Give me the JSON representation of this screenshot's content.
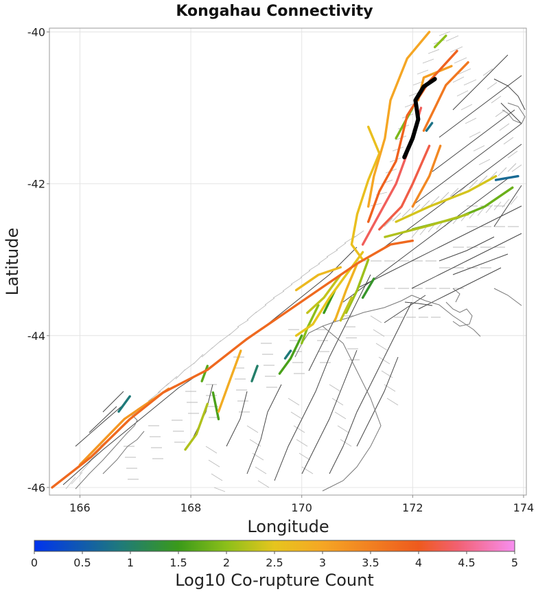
{
  "chart_data": {
    "type": "map",
    "title": "Kongahau Connectivity",
    "xlabel": "Longitude",
    "ylabel": "Latitude",
    "xlim": [
      165.45,
      174.05
    ],
    "ylim": [
      -46.1,
      -39.95
    ],
    "xticks": [
      166,
      168,
      170,
      172,
      174
    ],
    "yticks": [
      -40,
      -42,
      -44,
      -46
    ],
    "xtick_labels": [
      "166",
      "168",
      "170",
      "172",
      "174"
    ],
    "ytick_labels": [
      "-40",
      "-42",
      "-44",
      "-46"
    ],
    "colorbar": {
      "label": "Log10 Co-rupture Count",
      "min": 0,
      "max": 5,
      "ticks": [
        0,
        0.5,
        1,
        1.5,
        2,
        2.5,
        3,
        3.5,
        4,
        4.5,
        5
      ],
      "tick_labels": [
        "0",
        "0.5",
        "1",
        "1.5",
        "2",
        "2.5",
        "3",
        "3.5",
        "4",
        "4.5",
        "5"
      ],
      "stops": [
        {
          "v": 0,
          "color": "#0033ee"
        },
        {
          "v": 0.9,
          "color": "#1f7a7a"
        },
        {
          "v": 1.5,
          "color": "#3a9a1a"
        },
        {
          "v": 2.0,
          "color": "#8cbf1a"
        },
        {
          "v": 2.5,
          "color": "#e6c51e"
        },
        {
          "v": 3.0,
          "color": "#f5a624"
        },
        {
          "v": 4.0,
          "color": "#ee5a1e"
        },
        {
          "v": 4.4,
          "color": "#f26070"
        },
        {
          "v": 5.0,
          "color": "#f78ef0"
        }
      ]
    },
    "target_fault": {
      "name": "Kongahau",
      "color": "#000000",
      "coords": [
        [
          172.4,
          -40.62
        ],
        [
          172.2,
          -40.72
        ],
        [
          172.05,
          -40.9
        ],
        [
          172.1,
          -41.15
        ],
        [
          172.0,
          -41.4
        ],
        [
          171.85,
          -41.65
        ]
      ]
    },
    "faults": [
      {
        "value": 3.8,
        "coords": [
          [
            165.5,
            -46.0
          ],
          [
            166.2,
            -45.6
          ],
          [
            166.9,
            -45.1
          ],
          [
            167.5,
            -44.75
          ],
          [
            168.3,
            -44.45
          ],
          [
            169.0,
            -44.05
          ],
          [
            169.8,
            -43.65
          ],
          [
            170.4,
            -43.35
          ],
          [
            171.0,
            -43.05
          ],
          [
            171.6,
            -42.8
          ],
          [
            172.0,
            -42.75
          ]
        ]
      },
      {
        "value": 3.2,
        "coords": [
          [
            166.0,
            -45.7
          ],
          [
            166.8,
            -45.1
          ],
          [
            167.6,
            -44.7
          ]
        ]
      },
      {
        "value": 2.6,
        "coords": [
          [
            171.2,
            -41.25
          ],
          [
            171.4,
            -41.6
          ],
          [
            171.2,
            -41.95
          ],
          [
            171.0,
            -42.4
          ],
          [
            170.9,
            -42.8
          ],
          [
            171.1,
            -43.0
          ]
        ]
      },
      {
        "value": 3.0,
        "coords": [
          [
            172.3,
            -40.0
          ],
          [
            171.9,
            -40.35
          ],
          [
            171.6,
            -40.9
          ],
          [
            171.5,
            -41.4
          ],
          [
            171.3,
            -41.9
          ],
          [
            171.2,
            -42.3
          ]
        ]
      },
      {
        "value": 3.9,
        "coords": [
          [
            172.8,
            -40.25
          ],
          [
            172.3,
            -40.65
          ],
          [
            171.9,
            -41.1
          ],
          [
            171.7,
            -41.7
          ],
          [
            171.4,
            -42.1
          ],
          [
            171.2,
            -42.5
          ]
        ]
      },
      {
        "value": 4.3,
        "coords": [
          [
            172.15,
            -41.0
          ],
          [
            171.9,
            -41.6
          ],
          [
            171.7,
            -42.0
          ],
          [
            171.4,
            -42.4
          ],
          [
            171.1,
            -42.8
          ]
        ]
      },
      {
        "value": 4.2,
        "coords": [
          [
            172.3,
            -41.5
          ],
          [
            172.0,
            -42.0
          ],
          [
            171.8,
            -42.3
          ],
          [
            171.4,
            -42.6
          ]
        ]
      },
      {
        "value": 3.4,
        "coords": [
          [
            172.5,
            -41.5
          ],
          [
            172.3,
            -41.9
          ],
          [
            172.0,
            -42.3
          ]
        ]
      },
      {
        "value": 3.1,
        "coords": [
          [
            172.7,
            -40.45
          ],
          [
            172.2,
            -40.6
          ],
          [
            172.1,
            -40.9
          ]
        ]
      },
      {
        "value": 3.6,
        "coords": [
          [
            173.0,
            -40.4
          ],
          [
            172.6,
            -40.7
          ],
          [
            172.4,
            -41.0
          ],
          [
            172.2,
            -41.3
          ]
        ]
      },
      {
        "value": 1.9,
        "coords": [
          [
            172.0,
            -41.0
          ],
          [
            171.7,
            -41.4
          ]
        ]
      },
      {
        "value": 2.0,
        "coords": [
          [
            172.6,
            -40.05
          ],
          [
            172.4,
            -40.2
          ]
        ]
      },
      {
        "value": 0.8,
        "coords": [
          [
            172.35,
            -41.2
          ],
          [
            172.25,
            -41.3
          ]
        ]
      },
      {
        "value": 2.4,
        "coords": [
          [
            171.7,
            -42.5
          ],
          [
            172.3,
            -42.3
          ],
          [
            173.0,
            -42.1
          ],
          [
            173.5,
            -41.9
          ]
        ]
      },
      {
        "value": 1.8,
        "coords": [
          [
            172.0,
            -42.6
          ],
          [
            172.8,
            -42.45
          ],
          [
            173.3,
            -42.3
          ],
          [
            173.8,
            -42.05
          ]
        ]
      },
      {
        "value": 0.7,
        "coords": [
          [
            173.5,
            -41.95
          ],
          [
            173.9,
            -41.9
          ]
        ]
      },
      {
        "value": 2.2,
        "coords": [
          [
            171.5,
            -42.7
          ],
          [
            172.3,
            -42.55
          ],
          [
            173.0,
            -42.4
          ]
        ]
      },
      {
        "value": 2.8,
        "coords": [
          [
            171.0,
            -43.05
          ],
          [
            170.8,
            -43.4
          ],
          [
            170.6,
            -43.8
          ]
        ]
      },
      {
        "value": 2.5,
        "coords": [
          [
            171.1,
            -42.9
          ],
          [
            170.8,
            -43.2
          ],
          [
            170.5,
            -43.5
          ],
          [
            170.2,
            -43.85
          ],
          [
            169.9,
            -44.0
          ]
        ]
      },
      {
        "value": 2.3,
        "coords": [
          [
            170.7,
            -43.2
          ],
          [
            170.4,
            -43.5
          ],
          [
            170.1,
            -43.7
          ]
        ]
      },
      {
        "value": 2.1,
        "coords": [
          [
            171.2,
            -43.0
          ],
          [
            171.0,
            -43.4
          ],
          [
            170.8,
            -43.7
          ]
        ]
      },
      {
        "value": 1.6,
        "coords": [
          [
            170.0,
            -44.0
          ],
          [
            169.8,
            -44.3
          ],
          [
            169.6,
            -44.5
          ]
        ]
      },
      {
        "value": 1.5,
        "coords": [
          [
            170.6,
            -43.4
          ],
          [
            170.4,
            -43.7
          ]
        ]
      },
      {
        "value": 1.4,
        "coords": [
          [
            171.3,
            -43.25
          ],
          [
            171.1,
            -43.5
          ]
        ]
      },
      {
        "value": 2.0,
        "coords": [
          [
            170.3,
            -43.6
          ],
          [
            170.1,
            -43.9
          ],
          [
            170.0,
            -44.1
          ]
        ]
      },
      {
        "value": 2.3,
        "coords": [
          [
            170.9,
            -43.5
          ],
          [
            170.7,
            -43.8
          ]
        ]
      },
      {
        "value": 0.9,
        "coords": [
          [
            169.8,
            -44.2
          ],
          [
            169.7,
            -44.3
          ]
        ]
      },
      {
        "value": 2.9,
        "coords": [
          [
            168.9,
            -44.2
          ],
          [
            168.7,
            -44.6
          ],
          [
            168.5,
            -45.0
          ]
        ]
      },
      {
        "value": 2.2,
        "coords": [
          [
            168.3,
            -44.9
          ],
          [
            168.1,
            -45.3
          ],
          [
            167.9,
            -45.5
          ]
        ]
      },
      {
        "value": 1.7,
        "coords": [
          [
            168.3,
            -44.4
          ],
          [
            168.2,
            -44.6
          ]
        ]
      },
      {
        "value": 1.6,
        "coords": [
          [
            168.4,
            -44.75
          ],
          [
            168.5,
            -45.1
          ]
        ]
      },
      {
        "value": 1.0,
        "coords": [
          [
            169.2,
            -44.4
          ],
          [
            169.1,
            -44.6
          ]
        ]
      },
      {
        "value": 0.9,
        "coords": [
          [
            166.9,
            -44.8
          ],
          [
            166.7,
            -45.0
          ]
        ]
      },
      {
        "value": 2.7,
        "coords": [
          [
            169.9,
            -43.4
          ],
          [
            170.3,
            -43.2
          ],
          [
            170.7,
            -43.1
          ]
        ]
      }
    ]
  }
}
